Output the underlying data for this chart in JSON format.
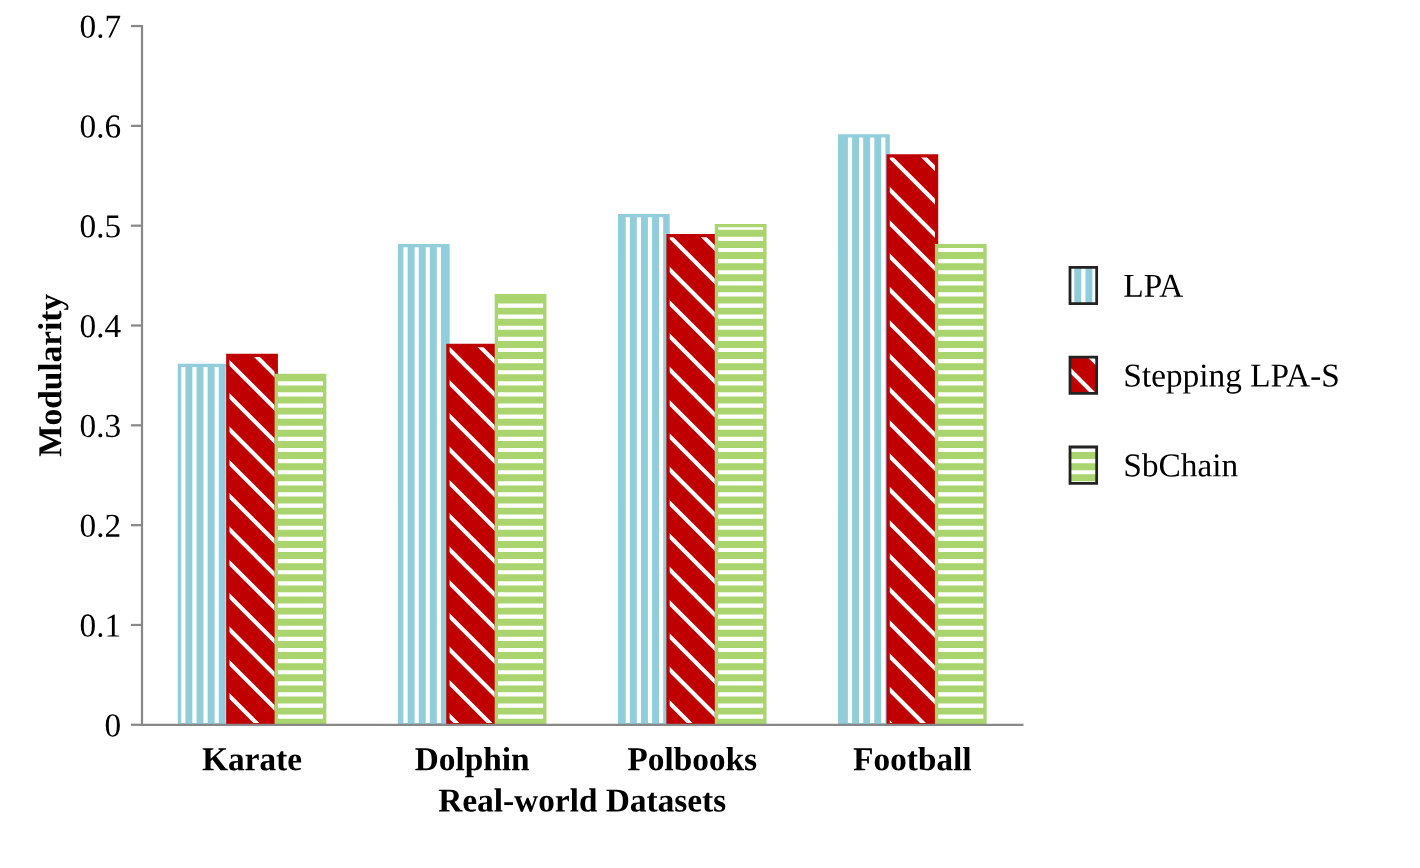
{
  "chart_data": {
    "type": "bar",
    "xlabel": "Real-world Datasets",
    "ylabel": "Modularity",
    "categories": [
      "Karate",
      "Dolphin",
      "Polbooks",
      "Football"
    ],
    "series": [
      {
        "name": "LPA",
        "color": "#92cddc",
        "values": [
          0.36,
          0.48,
          0.51,
          0.59
        ]
      },
      {
        "name": "Stepping LPA-S",
        "color": "#c00000",
        "values": [
          0.37,
          0.38,
          0.49,
          0.57
        ]
      },
      {
        "name": "SbChain",
        "color": "#a9d46e",
        "values": [
          0.35,
          0.43,
          0.5,
          0.48
        ]
      }
    ],
    "ylim": [
      0,
      0.7
    ],
    "yticks": [
      0,
      0.1,
      0.2,
      0.3,
      0.4,
      0.5,
      0.6,
      0.7
    ],
    "grid": false,
    "legend": "right"
  }
}
